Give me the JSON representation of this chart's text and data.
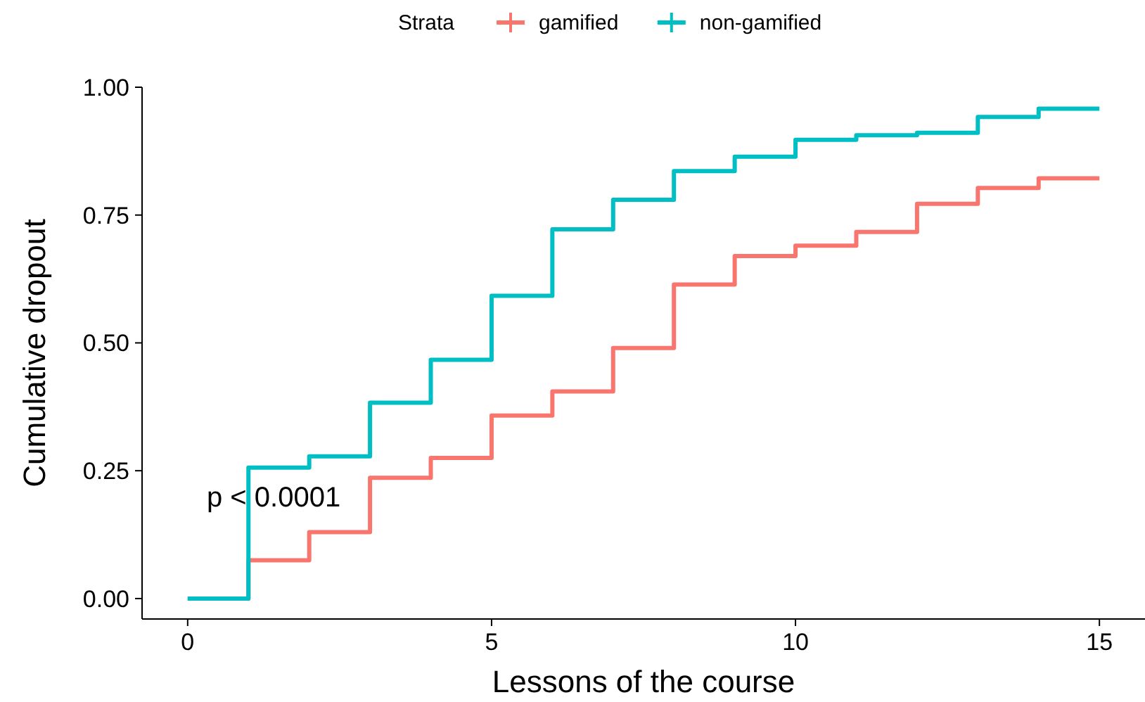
{
  "chart_data": {
    "type": "step",
    "xlabel": "Lessons of the course",
    "ylabel": "Cumulative dropout",
    "legend_title": "Strata",
    "legend": "top",
    "x": [
      0,
      1,
      2,
      3,
      4,
      5,
      6,
      7,
      8,
      9,
      10,
      11,
      12,
      13,
      14,
      15
    ],
    "series": [
      {
        "name": "gamified",
        "color": "#f8766d",
        "values": [
          0,
          0.075,
          0.13,
          0.236,
          0.275,
          0.358,
          0.405,
          0.49,
          0.614,
          0.67,
          0.69,
          0.717,
          0.772,
          0.803,
          0.822,
          0.822
        ]
      },
      {
        "name": "non-gamified",
        "color": "#00bfc4",
        "values": [
          0,
          0.256,
          0.278,
          0.383,
          0.467,
          0.592,
          0.722,
          0.78,
          0.836,
          0.864,
          0.897,
          0.906,
          0.911,
          0.942,
          0.958,
          0.958
        ]
      }
    ],
    "xlim": [
      -0.75,
      15.75
    ],
    "xticks": [
      0,
      5,
      10,
      15
    ],
    "ylim": [
      -0.04,
      1.0
    ],
    "yticks": [
      {
        "value": 0,
        "label": "0.00"
      },
      {
        "value": 0.25,
        "label": "0.25"
      },
      {
        "value": 0.5,
        "label": "0.50"
      },
      {
        "value": 0.75,
        "label": "0.75"
      },
      {
        "value": 1,
        "label": "1.00"
      }
    ],
    "annotations": [
      "p < 0.0001"
    ],
    "grid": false
  }
}
